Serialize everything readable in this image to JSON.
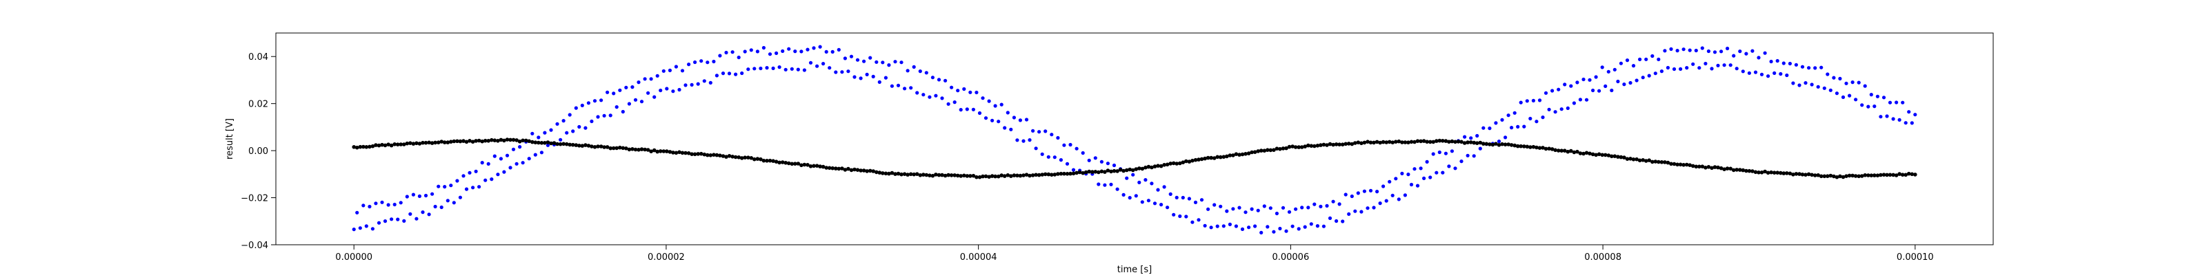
{
  "chart_data": {
    "type": "scatter",
    "title": "",
    "xlabel": "time [s]",
    "ylabel": "result [V]",
    "xlim": [
      -5e-06,
      0.000105
    ],
    "ylim": [
      -0.04,
      0.05
    ],
    "grid": false,
    "x_ticks": [
      {
        "value": 0.0,
        "label": "0.00000"
      },
      {
        "value": 2e-05,
        "label": "0.00002"
      },
      {
        "value": 4e-05,
        "label": "0.00004"
      },
      {
        "value": 6e-05,
        "label": "0.00006"
      },
      {
        "value": 8e-05,
        "label": "0.00008"
      },
      {
        "value": 0.0001,
        "label": "0.00010"
      }
    ],
    "y_ticks": [
      {
        "value": -0.04,
        "label": "−0.04"
      },
      {
        "value": -0.02,
        "label": "−0.02"
      },
      {
        "value": 0.0,
        "label": "0.00"
      },
      {
        "value": 0.02,
        "label": "0.02"
      },
      {
        "value": 0.04,
        "label": "0.04"
      }
    ],
    "series": [
      {
        "color": "#0000ff",
        "point_count": 500,
        "x_start": 0.0,
        "x_end": 0.0001,
        "envelope": [
          {
            "x": 0.0,
            "lower": -0.034,
            "upper": -0.026
          },
          {
            "x": 5e-06,
            "lower": -0.026,
            "upper": -0.018
          },
          {
            "x": 1e-05,
            "lower": -0.008,
            "upper": 0.0
          },
          {
            "x": 1.5e-05,
            "lower": 0.012,
            "upper": 0.02
          },
          {
            "x": 2e-05,
            "lower": 0.026,
            "upper": 0.033
          },
          {
            "x": 2.5e-05,
            "lower": 0.034,
            "upper": 0.042
          },
          {
            "x": 3e-05,
            "lower": 0.036,
            "upper": 0.043
          },
          {
            "x": 3.5e-05,
            "lower": 0.028,
            "upper": 0.036
          },
          {
            "x": 4e-05,
            "lower": 0.016,
            "upper": 0.024
          },
          {
            "x": 4.5e-05,
            "lower": -0.004,
            "upper": 0.004
          },
          {
            "x": 5e-05,
            "lower": -0.02,
            "upper": -0.012
          },
          {
            "x": 5.5e-05,
            "lower": -0.032,
            "upper": -0.024
          },
          {
            "x": 6e-05,
            "lower": -0.034,
            "upper": -0.026
          },
          {
            "x": 6.5e-05,
            "lower": -0.026,
            "upper": -0.018
          },
          {
            "x": 7e-05,
            "lower": -0.008,
            "upper": 0.0
          },
          {
            "x": 7.5e-05,
            "lower": 0.012,
            "upper": 0.02
          },
          {
            "x": 8e-05,
            "lower": 0.026,
            "upper": 0.034
          },
          {
            "x": 8.5e-05,
            "lower": 0.036,
            "upper": 0.043
          },
          {
            "x": 9e-05,
            "lower": 0.034,
            "upper": 0.041
          },
          {
            "x": 9.5e-05,
            "lower": 0.024,
            "upper": 0.032
          },
          {
            "x": 0.0001,
            "lower": 0.01,
            "upper": 0.017
          }
        ]
      },
      {
        "color": "#000000",
        "point_count": 500,
        "x_start": 0.0,
        "x_end": 0.0001,
        "points": [
          {
            "x": 0.0,
            "y": 0.0015
          },
          {
            "x": 5e-06,
            "y": 0.0035
          },
          {
            "x": 1e-05,
            "y": 0.0045
          },
          {
            "x": 1.5e-05,
            "y": 0.002
          },
          {
            "x": 2e-05,
            "y": -0.0005
          },
          {
            "x": 2.5e-05,
            "y": -0.003
          },
          {
            "x": 3e-05,
            "y": -0.007
          },
          {
            "x": 3.5e-05,
            "y": -0.01
          },
          {
            "x": 4e-05,
            "y": -0.011
          },
          {
            "x": 4.5e-05,
            "y": -0.01
          },
          {
            "x": 5e-05,
            "y": -0.008
          },
          {
            "x": 5.5e-05,
            "y": -0.003
          },
          {
            "x": 6e-05,
            "y": 0.0015
          },
          {
            "x": 6.5e-05,
            "y": 0.0035
          },
          {
            "x": 7e-05,
            "y": 0.004
          },
          {
            "x": 7.5e-05,
            "y": 0.002
          },
          {
            "x": 8e-05,
            "y": -0.002
          },
          {
            "x": 8.5e-05,
            "y": -0.006
          },
          {
            "x": 9e-05,
            "y": -0.009
          },
          {
            "x": 9.5e-05,
            "y": -0.011
          },
          {
            "x": 0.0001,
            "y": -0.01
          }
        ]
      }
    ]
  }
}
